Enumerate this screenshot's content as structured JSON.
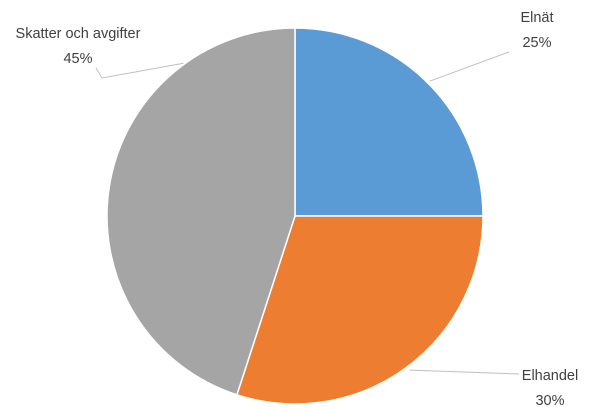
{
  "chart_data": {
    "type": "pie",
    "title": "",
    "slices": [
      {
        "label": "Elnät",
        "value": 25,
        "value_label": "25%",
        "color": "#5b9bd5"
      },
      {
        "label": "Elhandel",
        "value": 30,
        "value_label": "30%",
        "color": "#ed7d31"
      },
      {
        "label": "Skatter och avgifter",
        "value": 45,
        "value_label": "45%",
        "color": "#a5a5a5"
      }
    ],
    "start_angle_deg": 0,
    "direction": "clockwise",
    "data_labels": "outside-with-leader-lines",
    "legend": "none"
  }
}
